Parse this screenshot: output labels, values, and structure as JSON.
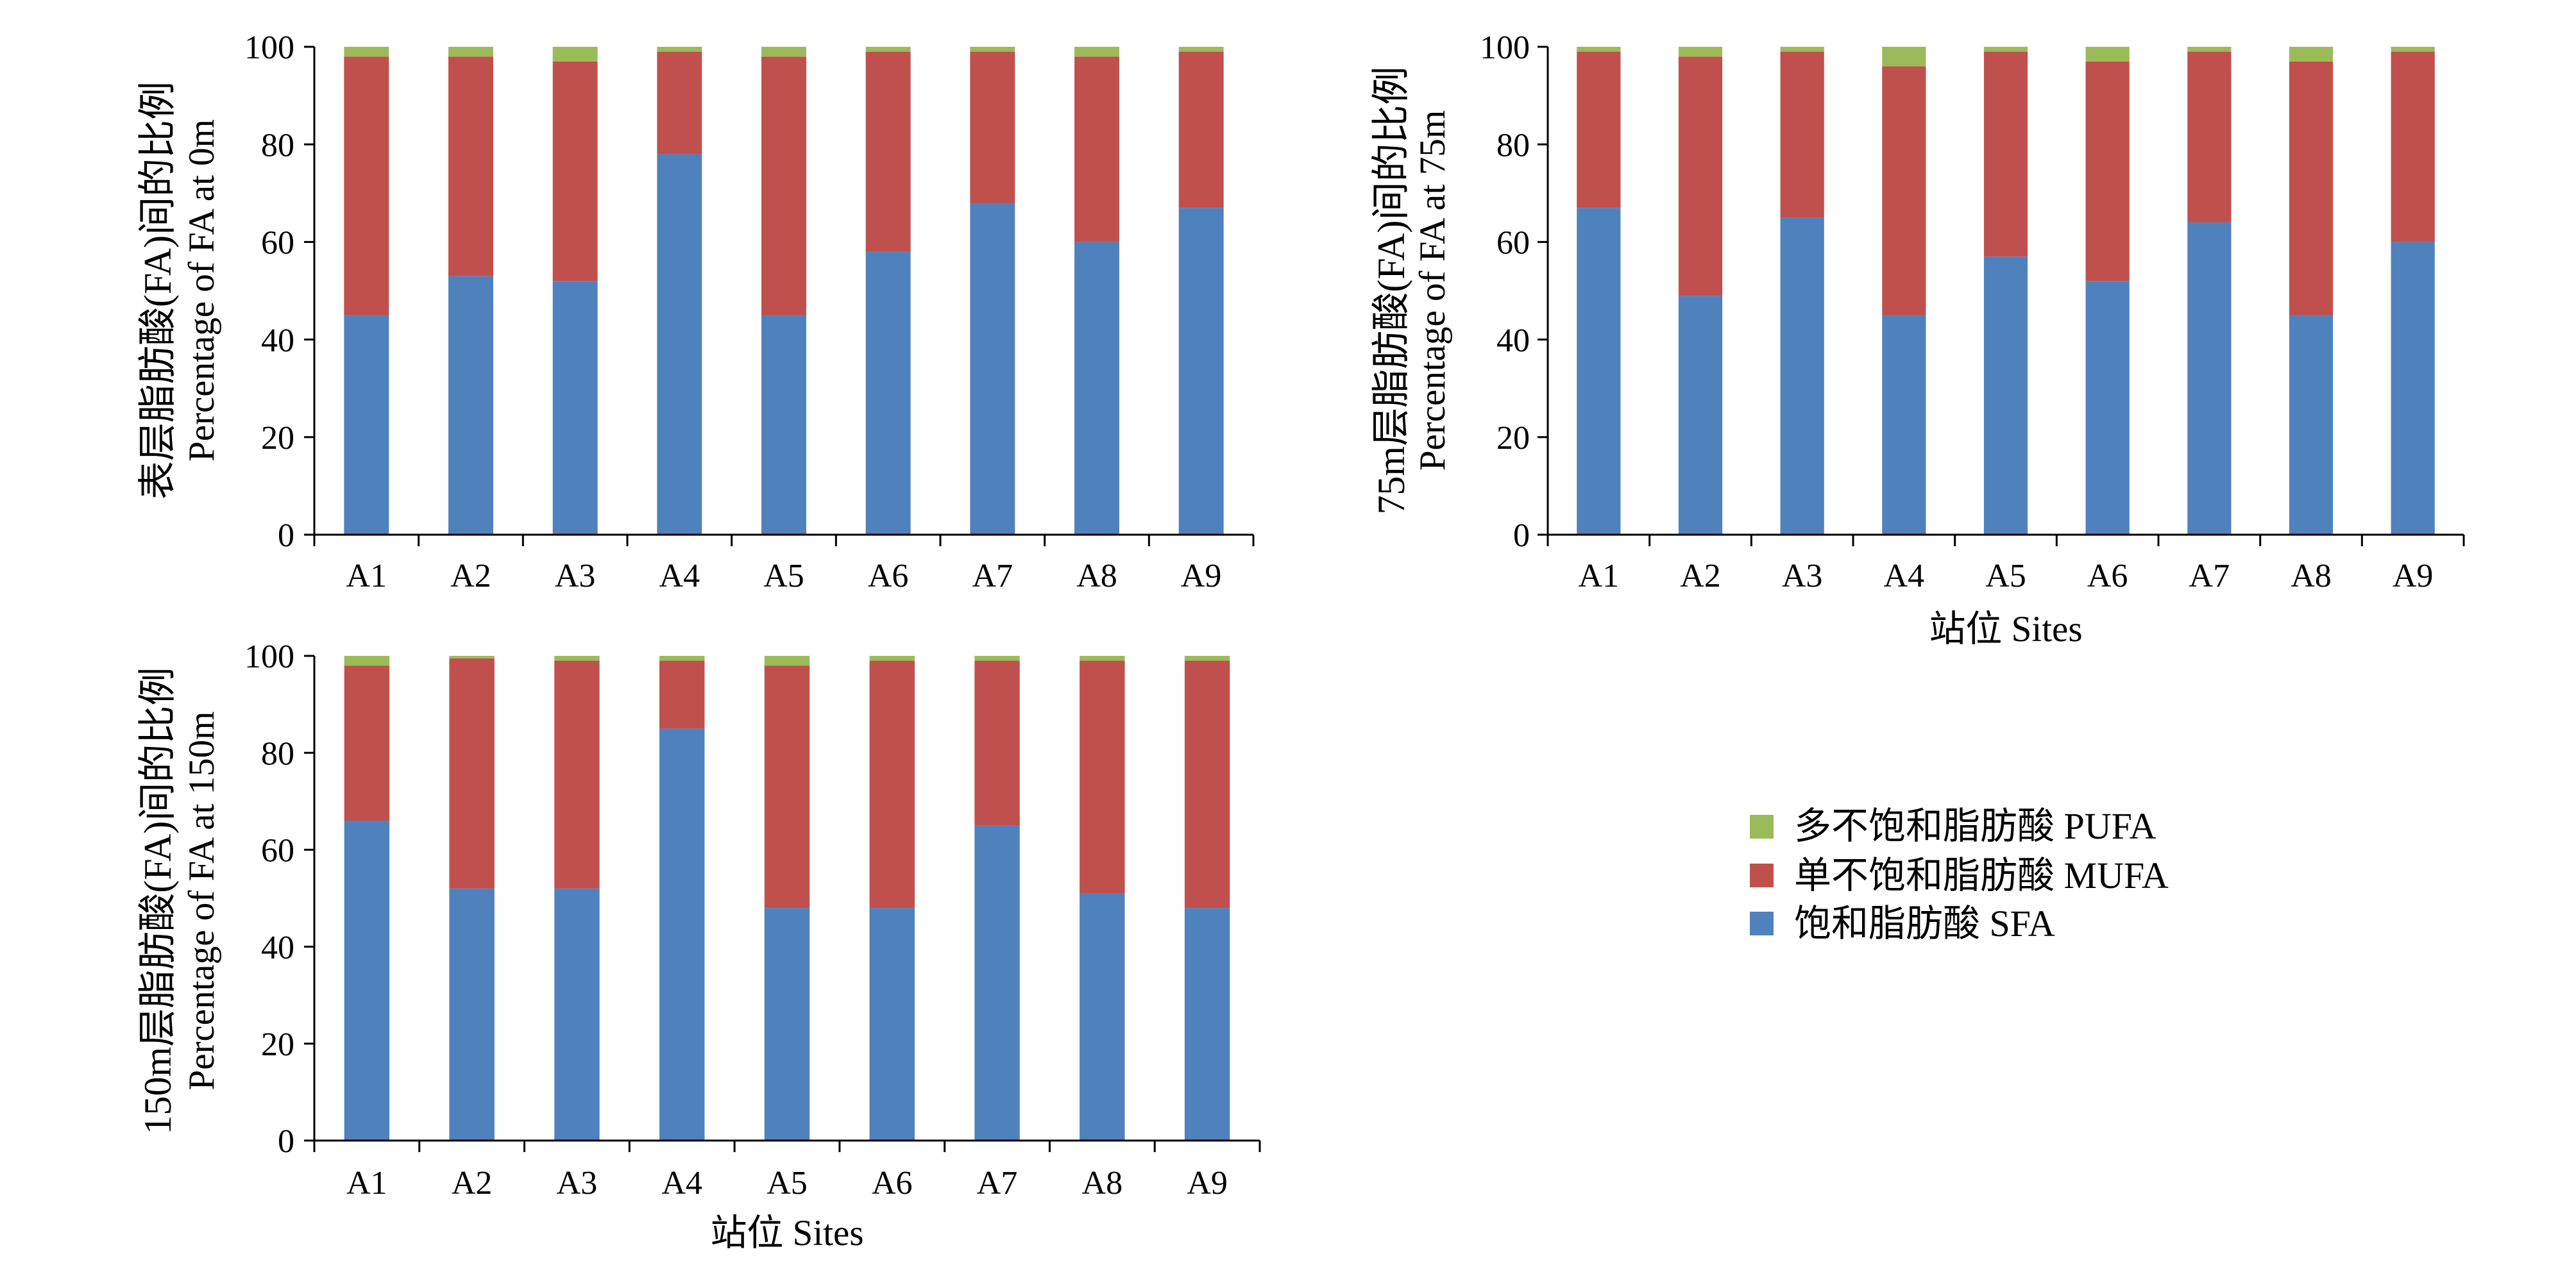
{
  "chart_data": [
    {
      "type": "bar",
      "stacked": true,
      "categories": [
        "A1",
        "A2",
        "A3",
        "A4",
        "A5",
        "A6",
        "A7",
        "A8",
        "A9"
      ],
      "series": [
        {
          "name": "饱和脂肪酸 SFA",
          "color": "#4F81BD",
          "values": [
            45,
            53,
            52,
            78,
            45,
            58,
            68,
            60,
            67
          ]
        },
        {
          "name": "单不饱和脂肪酸 MUFA",
          "color": "#C0504D",
          "values": [
            53,
            45,
            45,
            21,
            53,
            41,
            31,
            38,
            32
          ]
        },
        {
          "name": "多不饱和脂肪酸 PUFA",
          "color": "#9BBB59",
          "values": [
            2,
            2,
            3,
            1,
            2,
            1,
            1,
            2,
            1
          ]
        }
      ],
      "ylabel": [
        "表层脂肪酸(FA)间的比例",
        "Percentage of FA at 0m"
      ],
      "ylim": [
        0,
        100
      ],
      "yticks": [
        0,
        20,
        40,
        60,
        80,
        100
      ],
      "grid": false,
      "legend": "bottom-right"
    },
    {
      "type": "bar",
      "stacked": true,
      "categories": [
        "A1",
        "A2",
        "A3",
        "A4",
        "A5",
        "A6",
        "A7",
        "A8",
        "A9"
      ],
      "series": [
        {
          "name": "饱和脂肪酸 SFA",
          "color": "#4F81BD",
          "values": [
            67,
            49,
            65,
            45,
            57,
            52,
            64,
            45,
            60
          ]
        },
        {
          "name": "单不饱和脂肪酸 MUFA",
          "color": "#C0504D",
          "values": [
            32,
            49,
            34,
            51,
            42,
            45,
            35,
            52,
            39
          ]
        },
        {
          "name": "多不饱和脂肪酸 PUFA",
          "color": "#9BBB59",
          "values": [
            1,
            2,
            1,
            4,
            1,
            3,
            1,
            3,
            1
          ]
        }
      ],
      "ylabel": [
        "75m层脂肪酸(FA)间的比例",
        "Percentage of FA at 75m"
      ],
      "xlabel": "站位 Sites",
      "ylim": [
        0,
        100
      ],
      "yticks": [
        0,
        20,
        40,
        60,
        80,
        100
      ],
      "grid": false,
      "legend": "bottom-right"
    },
    {
      "type": "bar",
      "stacked": true,
      "categories": [
        "A1",
        "A2",
        "A3",
        "A4",
        "A5",
        "A6",
        "A7",
        "A8",
        "A9"
      ],
      "series": [
        {
          "name": "饱和脂肪酸 SFA",
          "color": "#4F81BD",
          "values": [
            66,
            52,
            52,
            85,
            48,
            48,
            65,
            51,
            48
          ]
        },
        {
          "name": "单不饱和脂肪酸 MUFA",
          "color": "#C0504D",
          "values": [
            32,
            47.5,
            47,
            14,
            50,
            51,
            34,
            48,
            51
          ]
        },
        {
          "name": "多不饱和脂肪酸 PUFA",
          "color": "#9BBB59",
          "values": [
            2,
            0.5,
            1,
            1,
            2,
            1,
            1,
            1,
            1
          ]
        }
      ],
      "ylabel": [
        "150m层脂肪酸(FA)间的比例",
        "Percentage of FA at 150m"
      ],
      "xlabel": "站位 Sites",
      "ylim": [
        0,
        100
      ],
      "yticks": [
        0,
        20,
        40,
        60,
        80,
        100
      ],
      "grid": false,
      "legend": "bottom-right"
    }
  ]
}
